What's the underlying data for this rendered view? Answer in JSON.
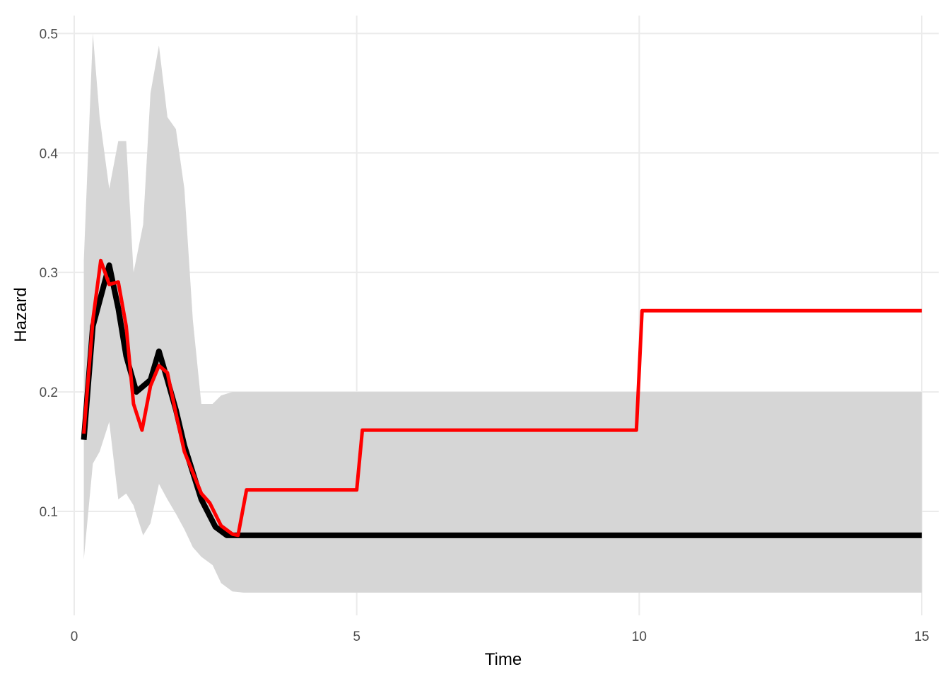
{
  "chart_data": {
    "type": "line",
    "xlabel": "Time",
    "ylabel": "Hazard",
    "xlim": [
      -0.3,
      15.3
    ],
    "ylim": [
      0.013,
      0.515
    ],
    "x_ticks": [
      0,
      5,
      10,
      15
    ],
    "x_tick_labels": [
      "0",
      "5",
      "10",
      "15"
    ],
    "y_ticks": [
      0.1,
      0.2,
      0.3,
      0.4,
      0.5
    ],
    "y_tick_labels": [
      "0.1",
      "0.2",
      "0.3",
      "0.4",
      "0.5"
    ],
    "grid": true,
    "legend": "none",
    "confidence_band": {
      "color": "#d6d6d6",
      "x": [
        0.17,
        0.33,
        0.45,
        0.62,
        0.78,
        0.92,
        1.05,
        1.22,
        1.35,
        1.5,
        1.65,
        1.8,
        1.95,
        2.1,
        2.25,
        2.45,
        2.6,
        2.8,
        3.0,
        15.0
      ],
      "upper": [
        0.31,
        0.5,
        0.43,
        0.37,
        0.41,
        0.41,
        0.3,
        0.34,
        0.45,
        0.49,
        0.43,
        0.42,
        0.37,
        0.26,
        0.19,
        0.19,
        0.197,
        0.2,
        0.2,
        0.2
      ],
      "lower": [
        0.06,
        0.14,
        0.15,
        0.175,
        0.11,
        0.115,
        0.105,
        0.08,
        0.09,
        0.123,
        0.11,
        0.098,
        0.085,
        0.07,
        0.062,
        0.055,
        0.04,
        0.033,
        0.032,
        0.032
      ]
    },
    "series": [
      {
        "color": "#000000",
        "x": [
          0.17,
          0.33,
          0.62,
          0.78,
          0.92,
          1.1,
          1.35,
          1.5,
          1.65,
          1.8,
          1.95,
          2.25,
          2.5,
          2.7,
          2.8,
          15.0
        ],
        "y": [
          0.16,
          0.255,
          0.306,
          0.27,
          0.23,
          0.2,
          0.21,
          0.234,
          0.21,
          0.185,
          0.155,
          0.11,
          0.087,
          0.08,
          0.08,
          0.08
        ]
      },
      {
        "color": "#ff0000",
        "x": [
          0.17,
          0.33,
          0.47,
          0.62,
          0.78,
          0.92,
          1.05,
          1.2,
          1.35,
          1.5,
          1.65,
          1.8,
          1.95,
          2.25,
          2.4,
          2.6,
          2.8,
          2.9,
          3.05,
          5.0,
          5.1,
          9.95,
          10.05,
          15.0
        ],
        "y": [
          0.165,
          0.26,
          0.31,
          0.29,
          0.292,
          0.255,
          0.19,
          0.168,
          0.205,
          0.222,
          0.216,
          0.182,
          0.15,
          0.115,
          0.107,
          0.088,
          0.081,
          0.08,
          0.118,
          0.118,
          0.168,
          0.168,
          0.268,
          0.268
        ]
      }
    ]
  }
}
